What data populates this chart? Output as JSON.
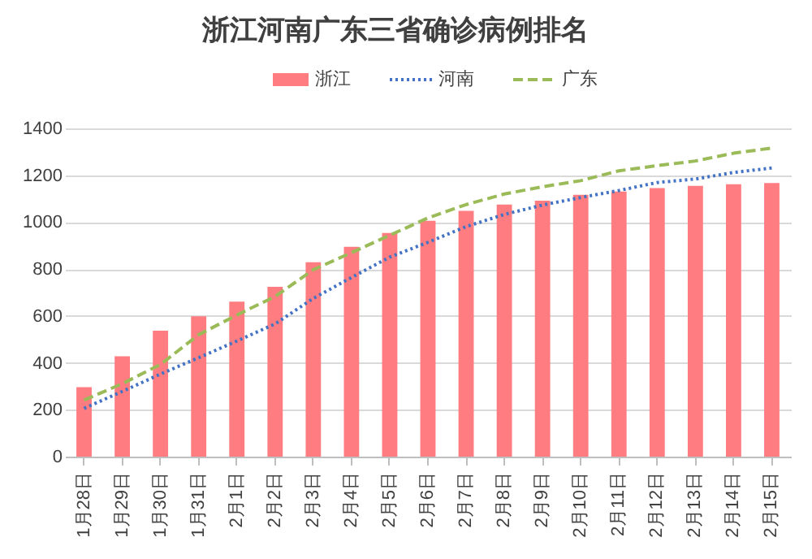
{
  "chart_data": {
    "type": "bar",
    "title": "浙江河南广东三省确诊病例排名",
    "categories": [
      "1月28日",
      "1月29日",
      "1月30日",
      "1月31日",
      "2月1日",
      "2月2日",
      "2月3日",
      "2月4日",
      "2月5日",
      "2月6日",
      "2月7日",
      "2月8日",
      "2月9日",
      "2月10日",
      "2月11日",
      "2月12日",
      "2月13日",
      "2月14日",
      "2月15日"
    ],
    "series": [
      {
        "name": "浙江",
        "color": "#ff7c80",
        "values": [
          296,
          428,
          537,
          599,
          661,
          724,
          829,
          895,
          954,
          1006,
          1048,
          1075,
          1092,
          1117,
          1131,
          1145,
          1155,
          1162,
          1167
        ]
      },
      {
        "name": "河南",
        "type": "line",
        "color": "#4472c4",
        "line_style": "dotted",
        "values": [
          206,
          278,
          352,
          422,
          493,
          566,
          675,
          764,
          851,
          914,
          981,
          1033,
          1073,
          1105,
          1135,
          1169,
          1184,
          1212,
          1231
        ]
      },
      {
        "name": "广东",
        "type": "line",
        "color": "#9bbb59",
        "line_style": "dashed",
        "values": [
          241,
          311,
          393,
          520,
          604,
          683,
          797,
          870,
          944,
          1018,
          1075,
          1120,
          1151,
          1177,
          1219,
          1241,
          1261,
          1294,
          1316
        ]
      }
    ],
    "ylim": [
      0,
      1400
    ],
    "yticks": [
      0,
      200,
      400,
      600,
      800,
      1000,
      1200,
      1400
    ],
    "grid": "y",
    "legend": "top"
  }
}
